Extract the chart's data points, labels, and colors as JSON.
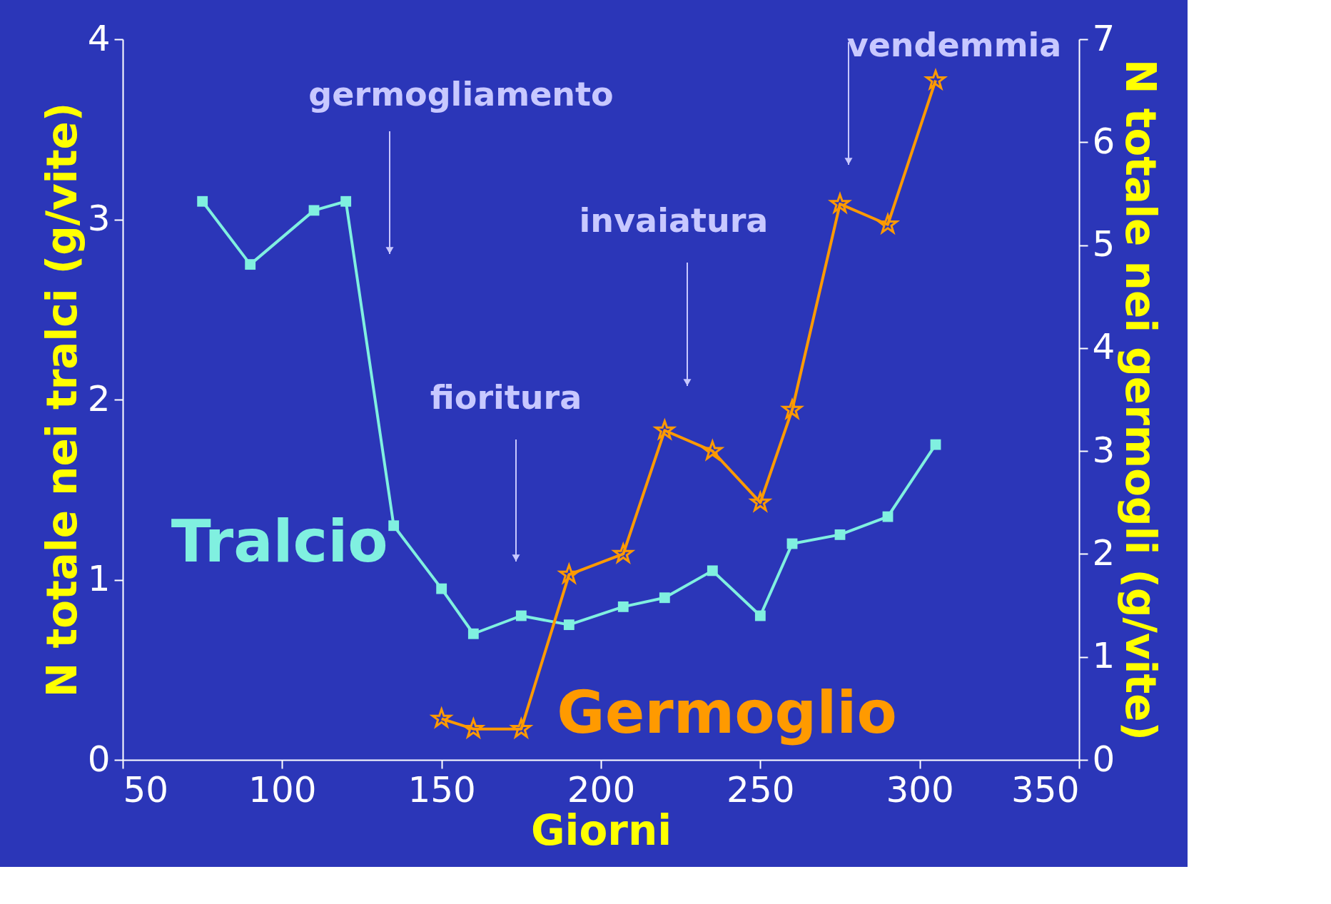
{
  "chart_data": {
    "type": "line",
    "xlabel": "Giorni",
    "ylabel": "N totale nei tralci (g/vite)",
    "y2label": "N totale nei germogli (g/vite)",
    "xlim": [
      50,
      350
    ],
    "xticks": [
      50,
      100,
      150,
      200,
      250,
      300,
      350
    ],
    "ylim": [
      0,
      4
    ],
    "yticks": [
      0,
      1,
      2,
      3,
      4
    ],
    "y2lim": [
      0,
      7
    ],
    "y2ticks": [
      0,
      1,
      2,
      3,
      4,
      5,
      6,
      7
    ],
    "grid": false,
    "series": [
      {
        "name": "Tralcio",
        "color": "#80f0e0",
        "marker": "square",
        "x": [
          75,
          90,
          110,
          120,
          135,
          150,
          160,
          175,
          190,
          207,
          220,
          235,
          250,
          260,
          275,
          290,
          305
        ],
        "values": [
          3.1,
          2.75,
          3.05,
          3.1,
          1.3,
          0.95,
          0.7,
          0.8,
          0.75,
          0.85,
          0.9,
          1.05,
          0.8,
          1.2,
          1.25,
          1.35,
          1.75
        ]
      },
      {
        "name": "Germoglio",
        "color": "#ff9a00",
        "marker": "star",
        "axis": "y2",
        "x": [
          150,
          160,
          175,
          190,
          207,
          220,
          235,
          250,
          260,
          275,
          290,
          305
        ],
        "values": [
          0.4,
          0.3,
          0.3,
          1.8,
          2.0,
          3.2,
          3.0,
          2.5,
          3.4,
          5.4,
          5.2,
          6.6
        ]
      }
    ],
    "annotations": [
      "germogliamento",
      "fioritura",
      "invaiatura",
      "vendemmia"
    ]
  }
}
